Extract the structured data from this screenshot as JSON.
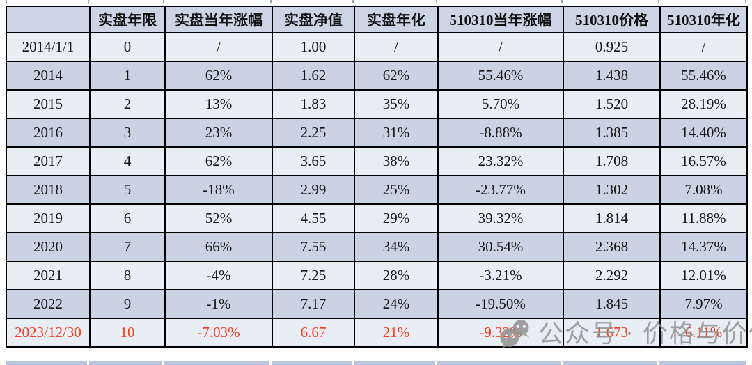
{
  "colors": {
    "header_bg": "#ccd5e6",
    "row_dark_bg": "#c9d3e3",
    "row_light_bg": "#e9edf4",
    "border": "#000000",
    "text": "#161616",
    "highlight_text": "#fb3a1e",
    "watermark_gray": "#8f8f8f"
  },
  "watermark": {
    "icon": "wechat-icon",
    "text": "公众号 · 价格与价值"
  },
  "chart_data": {
    "type": "table",
    "columns": [
      "",
      "实盘年限",
      "实盘当年涨幅",
      "实盘净值",
      "实盘年化",
      "510310当年涨幅",
      "510310价格",
      "510310年化"
    ],
    "rows": [
      {
        "cells": [
          "2014/1/1",
          "0",
          "/",
          "1.00",
          "/",
          "/",
          "0.925",
          "/"
        ],
        "shade": "light",
        "highlight": false
      },
      {
        "cells": [
          "2014",
          "1",
          "62%",
          "1.62",
          "62%",
          "55.46%",
          "1.438",
          "55.46%"
        ],
        "shade": "dark",
        "highlight": false
      },
      {
        "cells": [
          "2015",
          "2",
          "13%",
          "1.83",
          "35%",
          "5.70%",
          "1.520",
          "28.19%"
        ],
        "shade": "light",
        "highlight": false
      },
      {
        "cells": [
          "2016",
          "3",
          "23%",
          "2.25",
          "31%",
          "-8.88%",
          "1.385",
          "14.40%"
        ],
        "shade": "dark",
        "highlight": false
      },
      {
        "cells": [
          "2017",
          "4",
          "62%",
          "3.65",
          "38%",
          "23.32%",
          "1.708",
          "16.57%"
        ],
        "shade": "light",
        "highlight": false
      },
      {
        "cells": [
          "2018",
          "5",
          "-18%",
          "2.99",
          "25%",
          "-23.77%",
          "1.302",
          "7.08%"
        ],
        "shade": "dark",
        "highlight": false
      },
      {
        "cells": [
          "2019",
          "6",
          "52%",
          "4.55",
          "29%",
          "39.32%",
          "1.814",
          "11.88%"
        ],
        "shade": "light",
        "highlight": false
      },
      {
        "cells": [
          "2020",
          "7",
          "66%",
          "7.55",
          "34%",
          "30.54%",
          "2.368",
          "14.37%"
        ],
        "shade": "dark",
        "highlight": false
      },
      {
        "cells": [
          "2021",
          "8",
          "-4%",
          "7.25",
          "28%",
          "-3.21%",
          "2.292",
          "12.01%"
        ],
        "shade": "light",
        "highlight": false
      },
      {
        "cells": [
          "2022",
          "9",
          "-1%",
          "7.17",
          "24%",
          "-19.50%",
          "1.845",
          "7.97%"
        ],
        "shade": "dark",
        "highlight": false
      },
      {
        "cells": [
          "2023/12/30",
          "10",
          "-7.03%",
          "6.67",
          "21%",
          "-9.32%",
          "1.673",
          "6.11%"
        ],
        "shade": "light",
        "highlight": true
      }
    ]
  }
}
